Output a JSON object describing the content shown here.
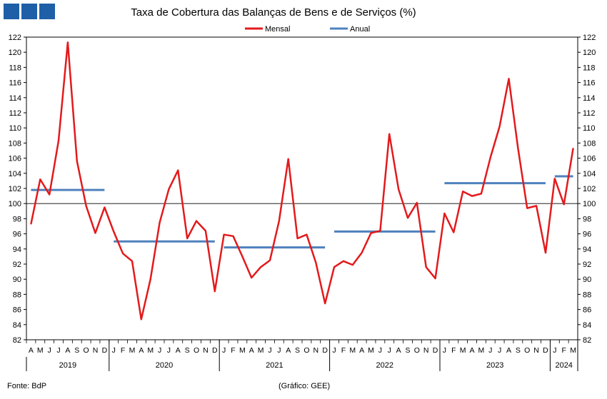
{
  "header": {
    "title": "Taxa de Cobertura das Balanças de Bens e de Serviços (%)"
  },
  "footer": {
    "source": "Fonte: BdP",
    "credit": "(Gráfico: GEE)"
  },
  "colors": {
    "mensal": "#e31a1c",
    "anual": "#4f81bd",
    "brand": "#1f5fa8"
  },
  "chart_data": {
    "type": "line",
    "title": "Taxa de Cobertura das Balanças de Bens e de Serviços (%)",
    "ylim": [
      82,
      122
    ],
    "yticks": [
      82,
      84,
      86,
      88,
      90,
      92,
      94,
      96,
      98,
      100,
      102,
      104,
      106,
      108,
      110,
      112,
      114,
      116,
      118,
      120,
      122
    ],
    "reference_line": 100,
    "legend_position": "top-center",
    "months": [
      "A",
      "M",
      "J",
      "J",
      "A",
      "S",
      "O",
      "N",
      "D",
      "J",
      "F",
      "M",
      "A",
      "M",
      "J",
      "J",
      "A",
      "S",
      "O",
      "N",
      "D",
      "J",
      "F",
      "M",
      "A",
      "M",
      "J",
      "J",
      "A",
      "S",
      "O",
      "N",
      "D",
      "J",
      "F",
      "M",
      "A",
      "M",
      "J",
      "J",
      "A",
      "S",
      "O",
      "N",
      "D",
      "J",
      "F",
      "M",
      "A",
      "M",
      "J",
      "J",
      "A",
      "S",
      "O",
      "N",
      "D",
      "J",
      "F",
      "M"
    ],
    "years": [
      {
        "label": "2019",
        "start": 0,
        "end": 8
      },
      {
        "label": "2020",
        "start": 9,
        "end": 20
      },
      {
        "label": "2021",
        "start": 21,
        "end": 32
      },
      {
        "label": "2022",
        "start": 33,
        "end": 44
      },
      {
        "label": "2023",
        "start": 45,
        "end": 56
      },
      {
        "label": "2024",
        "start": 57,
        "end": 59
      }
    ],
    "series": [
      {
        "name": "Mensal",
        "type": "line",
        "values": [
          97.3,
          103.2,
          101.2,
          108.3,
          121.3,
          105.6,
          99.7,
          96.1,
          99.5,
          96.3,
          93.4,
          92.4,
          84.7,
          90.0,
          97.5,
          101.9,
          104.4,
          95.4,
          97.7,
          96.4,
          88.4,
          95.9,
          95.7,
          93.0,
          90.2,
          91.6,
          92.5,
          97.7,
          105.9,
          95.4,
          95.9,
          92.2,
          86.8,
          91.6,
          92.4,
          91.9,
          93.5,
          96.1,
          96.4,
          109.2,
          101.9,
          98.1,
          100.1,
          91.6,
          90.1,
          98.7,
          96.2,
          101.6,
          101.0,
          101.3,
          106.1,
          110.2,
          116.5,
          107.3,
          99.4,
          99.7,
          93.5,
          103.3,
          99.9,
          107.3
        ]
      },
      {
        "name": "Anual",
        "type": "segments",
        "segments": [
          {
            "year": "2019",
            "value": 101.8
          },
          {
            "year": "2020",
            "value": 95.0
          },
          {
            "year": "2021",
            "value": 94.2
          },
          {
            "year": "2022",
            "value": 96.3
          },
          {
            "year": "2023",
            "value": 102.7
          },
          {
            "year": "2024",
            "value": 103.6
          }
        ]
      }
    ]
  }
}
